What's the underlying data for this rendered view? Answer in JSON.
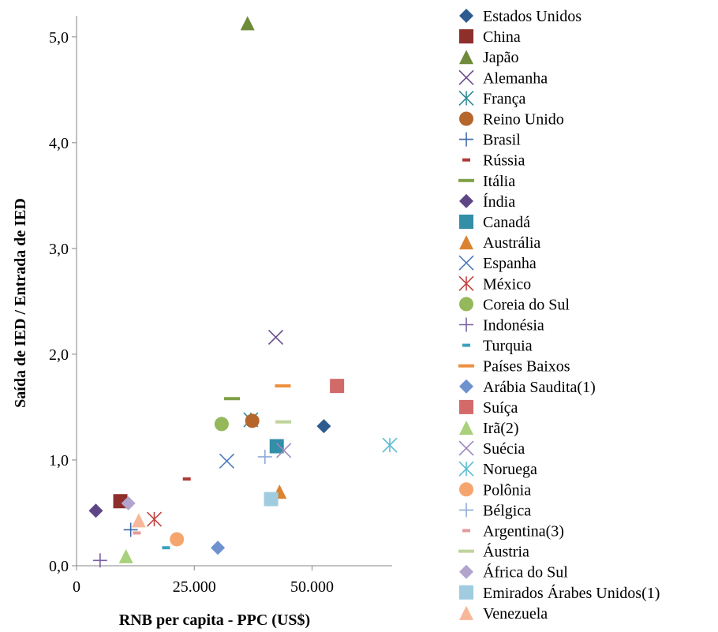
{
  "chart_data": {
    "type": "scatter",
    "title": "",
    "xlabel": "RNB per capita - PPC (US$)",
    "ylabel": "Saída de IED / Entrada de IED",
    "xlim": [
      0,
      67000
    ],
    "ylim": [
      0,
      5.2
    ],
    "x_ticks": [
      0,
      25000,
      50000
    ],
    "x_tick_labels": [
      "0",
      "25.000",
      "50.000"
    ],
    "y_ticks": [
      0,
      1,
      2,
      3,
      4,
      5
    ],
    "y_tick_labels": [
      "0,0",
      "1,0",
      "2,0",
      "3,0",
      "4,0",
      "5,0"
    ],
    "grid": false,
    "legend_position": "right",
    "series": [
      {
        "name": "Estados Unidos",
        "marker": "diamond",
        "color": "#2E5B8F",
        "x": 52500,
        "y": 1.32
      },
      {
        "name": "China",
        "marker": "square",
        "color": "#8E2F2C",
        "x": 9300,
        "y": 0.61
      },
      {
        "name": "Japão",
        "marker": "triangle",
        "color": "#6E8A3A",
        "x": 36300,
        "y": 5.13
      },
      {
        "name": "Alemanha",
        "marker": "x",
        "color": "#6A4C8C",
        "x": 42300,
        "y": 2.16
      },
      {
        "name": "França",
        "marker": "star",
        "color": "#2E8A98",
        "x": 37000,
        "y": 1.38
      },
      {
        "name": "Reino Unido",
        "marker": "circle",
        "color": "#B5662A",
        "x": 37300,
        "y": 1.37
      },
      {
        "name": "Brasil",
        "marker": "plus",
        "color": "#3C6AA8",
        "x": 11500,
        "y": 0.34
      },
      {
        "name": "Rússia",
        "marker": "dash",
        "color": "#B03A36",
        "x": 23400,
        "y": 0.82
      },
      {
        "name": "Itália",
        "marker": "longdash",
        "color": "#7EA046",
        "x": 33000,
        "y": 1.58
      },
      {
        "name": "Índia",
        "marker": "diamond",
        "color": "#5E4586",
        "x": 4100,
        "y": 0.52
      },
      {
        "name": "Canadá",
        "marker": "square",
        "color": "#338EA8",
        "x": 42500,
        "y": 1.13
      },
      {
        "name": "Austrália",
        "marker": "triangle",
        "color": "#DB8331",
        "x": 43100,
        "y": 0.7
      },
      {
        "name": "Espanha",
        "marker": "x",
        "color": "#4D7ABE",
        "x": 31900,
        "y": 0.99
      },
      {
        "name": "México",
        "marker": "star",
        "color": "#C24240",
        "x": 16500,
        "y": 0.44
      },
      {
        "name": "Coreia do Sul",
        "marker": "circle",
        "color": "#94B85A",
        "x": 30800,
        "y": 1.34
      },
      {
        "name": "Indonésia",
        "marker": "plus",
        "color": "#7A5EA6",
        "x": 5000,
        "y": 0.05
      },
      {
        "name": "Turquia",
        "marker": "dash",
        "color": "#3AA2BC",
        "x": 19000,
        "y": 0.17
      },
      {
        "name": "Países Baixos",
        "marker": "longdash",
        "color": "#EE8F3F",
        "x": 43800,
        "y": 1.7
      },
      {
        "name": "Arábia Saudita(1)",
        "marker": "diamond",
        "color": "#6E92CF",
        "x": 30000,
        "y": 0.17
      },
      {
        "name": "Suíça",
        "marker": "square",
        "color": "#D16A69",
        "x": 55300,
        "y": 1.7
      },
      {
        "name": "Irã(2)",
        "marker": "triangle",
        "color": "#A9D07A",
        "x": 10500,
        "y": 0.09
      },
      {
        "name": "Suécia",
        "marker": "x",
        "color": "#9C87BE",
        "x": 44000,
        "y": 1.09
      },
      {
        "name": "Noruega",
        "marker": "star",
        "color": "#5BBCD0",
        "x": 66500,
        "y": 1.14
      },
      {
        "name": "Polônia",
        "marker": "circle",
        "color": "#F6A56F",
        "x": 21300,
        "y": 0.25
      },
      {
        "name": "Bélgica",
        "marker": "plus",
        "color": "#8EA9DA",
        "x": 40000,
        "y": 1.03
      },
      {
        "name": "Argentina(3)",
        "marker": "dash",
        "color": "#E39A9B",
        "x": 12800,
        "y": 0.31
      },
      {
        "name": "Áustria",
        "marker": "longdash",
        "color": "#BFD39B",
        "x": 43900,
        "y": 1.36
      },
      {
        "name": "África do Sul",
        "marker": "diamond",
        "color": "#B2A4CC",
        "x": 11000,
        "y": 0.59
      },
      {
        "name": "Emirados Árabes Unidos(1)",
        "marker": "square",
        "color": "#9FCCDF",
        "x": 41300,
        "y": 0.63
      },
      {
        "name": "Venezuela",
        "marker": "triangle",
        "color": "#F7B89A",
        "x": 13200,
        "y": 0.43
      }
    ]
  }
}
